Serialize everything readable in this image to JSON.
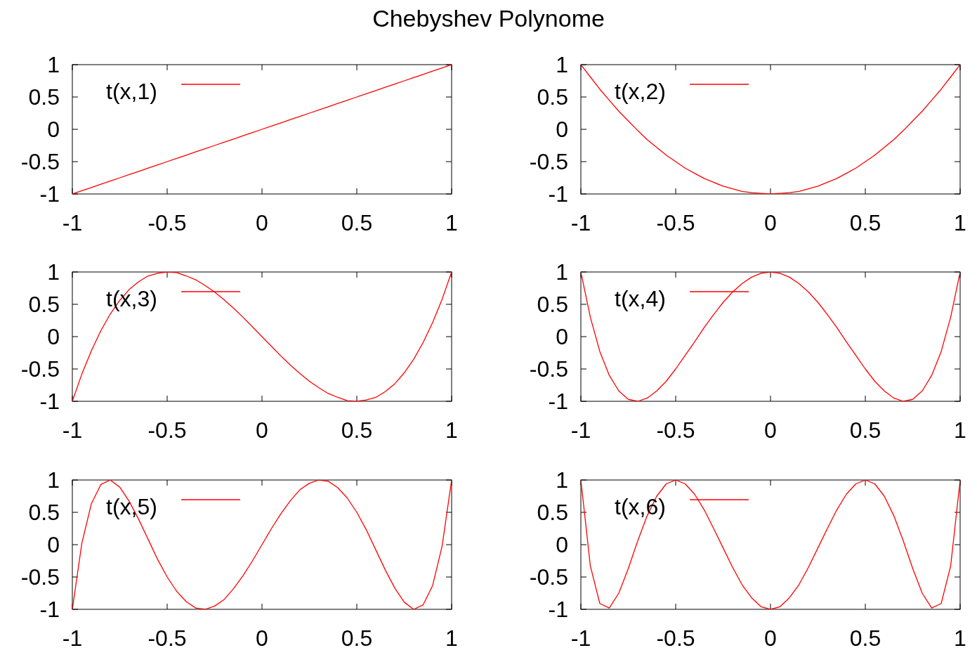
{
  "chart_data": [
    {
      "type": "line",
      "title": "Chebyshev Polynome",
      "legend": "top left",
      "xlim": [
        -1,
        1
      ],
      "ylim": [
        -1,
        1
      ],
      "xticks": [
        -1,
        -0.5,
        0,
        0.5,
        1
      ],
      "yticks": [
        -1,
        -0.5,
        0,
        0.5,
        1
      ],
      "x": [
        -1,
        -0.95,
        -0.9,
        -0.85,
        -0.8,
        -0.75,
        -0.7,
        -0.65,
        -0.6,
        -0.55,
        -0.5,
        -0.45,
        -0.4,
        -0.35,
        -0.3,
        -0.25,
        -0.2,
        -0.15,
        -0.1,
        -0.05,
        0,
        0.05,
        0.1,
        0.15,
        0.2,
        0.25,
        0.3,
        0.35,
        0.4,
        0.45,
        0.5,
        0.55,
        0.6,
        0.65,
        0.7,
        0.75,
        0.8,
        0.85,
        0.9,
        0.95,
        1
      ],
      "series": [
        {
          "name": "t(x,1)",
          "color": "#ff0000",
          "values": [
            -1,
            -0.95,
            -0.9,
            -0.85,
            -0.8,
            -0.75,
            -0.7,
            -0.65,
            -0.6,
            -0.55,
            -0.5,
            -0.45,
            -0.4,
            -0.35,
            -0.3,
            -0.25,
            -0.2,
            -0.15,
            -0.1,
            -0.05,
            0,
            0.05,
            0.1,
            0.15,
            0.2,
            0.25,
            0.3,
            0.35,
            0.4,
            0.45,
            0.5,
            0.55,
            0.6,
            0.65,
            0.7,
            0.75,
            0.8,
            0.85,
            0.9,
            0.95,
            1
          ]
        }
      ]
    },
    {
      "type": "line",
      "legend": "top left",
      "xlim": [
        -1,
        1
      ],
      "ylim": [
        -1,
        1
      ],
      "xticks": [
        -1,
        -0.5,
        0,
        0.5,
        1
      ],
      "yticks": [
        -1,
        -0.5,
        0,
        0.5,
        1
      ],
      "x": [
        -1,
        -0.95,
        -0.9,
        -0.85,
        -0.8,
        -0.75,
        -0.7,
        -0.65,
        -0.6,
        -0.55,
        -0.5,
        -0.45,
        -0.4,
        -0.35,
        -0.3,
        -0.25,
        -0.2,
        -0.15,
        -0.1,
        -0.05,
        0,
        0.05,
        0.1,
        0.15,
        0.2,
        0.25,
        0.3,
        0.35,
        0.4,
        0.45,
        0.5,
        0.55,
        0.6,
        0.65,
        0.7,
        0.75,
        0.8,
        0.85,
        0.9,
        0.95,
        1
      ],
      "series": [
        {
          "name": "t(x,2)",
          "color": "#ff0000",
          "values": [
            1,
            0.81,
            0.62,
            0.45,
            0.28,
            0.13,
            -0.02,
            -0.16,
            -0.28,
            -0.4,
            -0.5,
            -0.6,
            -0.68,
            -0.76,
            -0.82,
            -0.88,
            -0.92,
            -0.96,
            -0.98,
            -0.99,
            -1,
            -0.99,
            -0.98,
            -0.96,
            -0.92,
            -0.88,
            -0.82,
            -0.76,
            -0.68,
            -0.6,
            -0.5,
            -0.4,
            -0.28,
            -0.16,
            -0.02,
            0.13,
            0.28,
            0.45,
            0.62,
            0.81,
            1
          ]
        }
      ]
    },
    {
      "type": "line",
      "legend": "top left",
      "xlim": [
        -1,
        1
      ],
      "ylim": [
        -1,
        1
      ],
      "xticks": [
        -1,
        -0.5,
        0,
        0.5,
        1
      ],
      "yticks": [
        -1,
        -0.5,
        0,
        0.5,
        1
      ],
      "x": [
        -1,
        -0.95,
        -0.9,
        -0.85,
        -0.8,
        -0.75,
        -0.7,
        -0.65,
        -0.6,
        -0.55,
        -0.5,
        -0.45,
        -0.4,
        -0.35,
        -0.3,
        -0.25,
        -0.2,
        -0.15,
        -0.1,
        -0.05,
        0,
        0.05,
        0.1,
        0.15,
        0.2,
        0.25,
        0.3,
        0.35,
        0.4,
        0.45,
        0.5,
        0.55,
        0.6,
        0.65,
        0.7,
        0.75,
        0.8,
        0.85,
        0.9,
        0.95,
        1
      ],
      "series": [
        {
          "name": "t(x,3)",
          "color": "#ff0000",
          "values": [
            -1,
            -0.58,
            -0.22,
            0.09,
            0.35,
            0.56,
            0.73,
            0.85,
            0.94,
            0.98,
            1,
            0.99,
            0.94,
            0.88,
            0.79,
            0.69,
            0.57,
            0.44,
            0.3,
            0.15,
            0,
            -0.15,
            -0.3,
            -0.44,
            -0.57,
            -0.69,
            -0.79,
            -0.88,
            -0.94,
            -0.99,
            -1,
            -0.98,
            -0.94,
            -0.85,
            -0.73,
            -0.56,
            -0.35,
            -0.09,
            0.22,
            0.58,
            1
          ]
        }
      ]
    },
    {
      "type": "line",
      "legend": "top left",
      "xlim": [
        -1,
        1
      ],
      "ylim": [
        -1,
        1
      ],
      "xticks": [
        -1,
        -0.5,
        0,
        0.5,
        1
      ],
      "yticks": [
        -1,
        -0.5,
        0,
        0.5,
        1
      ],
      "x": [
        -1,
        -0.95,
        -0.9,
        -0.85,
        -0.8,
        -0.75,
        -0.7,
        -0.65,
        -0.6,
        -0.55,
        -0.5,
        -0.45,
        -0.4,
        -0.35,
        -0.3,
        -0.25,
        -0.2,
        -0.15,
        -0.1,
        -0.05,
        0,
        0.05,
        0.1,
        0.15,
        0.2,
        0.25,
        0.3,
        0.35,
        0.4,
        0.45,
        0.5,
        0.55,
        0.6,
        0.65,
        0.7,
        0.75,
        0.8,
        0.85,
        0.9,
        0.95,
        1
      ],
      "series": [
        {
          "name": "t(x,4)",
          "color": "#ff0000",
          "values": [
            1,
            0.3,
            -0.23,
            -0.6,
            -0.84,
            -0.97,
            -1,
            -0.95,
            -0.84,
            -0.69,
            -0.5,
            -0.29,
            -0.08,
            0.14,
            0.34,
            0.53,
            0.69,
            0.82,
            0.92,
            0.98,
            1,
            0.98,
            0.92,
            0.82,
            0.69,
            0.53,
            0.34,
            0.14,
            -0.08,
            -0.29,
            -0.5,
            -0.69,
            -0.84,
            -0.95,
            -1,
            -0.97,
            -0.84,
            -0.6,
            -0.23,
            0.3,
            1
          ]
        }
      ]
    },
    {
      "type": "line",
      "legend": "top left",
      "xlim": [
        -1,
        1
      ],
      "ylim": [
        -1,
        1
      ],
      "xticks": [
        -1,
        -0.5,
        0,
        0.5,
        1
      ],
      "yticks": [
        -1,
        -0.5,
        0,
        0.5,
        1
      ],
      "x": [
        -1,
        -0.95,
        -0.9,
        -0.85,
        -0.8,
        -0.75,
        -0.7,
        -0.65,
        -0.6,
        -0.55,
        -0.5,
        -0.45,
        -0.4,
        -0.35,
        -0.3,
        -0.25,
        -0.2,
        -0.15,
        -0.1,
        -0.05,
        0,
        0.05,
        0.1,
        0.15,
        0.2,
        0.25,
        0.3,
        0.35,
        0.4,
        0.45,
        0.5,
        0.55,
        0.6,
        0.65,
        0.7,
        0.75,
        0.8,
        0.85,
        0.9,
        0.95,
        1
      ],
      "series": [
        {
          "name": "t(x,5)",
          "color": "#ff0000",
          "values": [
            -1,
            0.02,
            0.63,
            0.93,
            1,
            0.89,
            0.67,
            0.39,
            0.08,
            -0.23,
            -0.5,
            -0.72,
            -0.88,
            -0.98,
            -1,
            -0.95,
            -0.85,
            -0.68,
            -0.48,
            -0.25,
            0,
            0.25,
            0.48,
            0.68,
            0.85,
            0.95,
            1,
            0.98,
            0.88,
            0.72,
            0.5,
            0.23,
            -0.08,
            -0.39,
            -0.67,
            -0.89,
            -1,
            -0.93,
            -0.63,
            -0.02,
            1
          ]
        }
      ]
    },
    {
      "type": "line",
      "legend": "top left",
      "xlim": [
        -1,
        1
      ],
      "ylim": [
        -1,
        1
      ],
      "xticks": [
        -1,
        -0.5,
        0,
        0.5,
        1
      ],
      "yticks": [
        -1,
        -0.5,
        0,
        0.5,
        1
      ],
      "x": [
        -1,
        -0.95,
        -0.9,
        -0.85,
        -0.8,
        -0.75,
        -0.7,
        -0.65,
        -0.6,
        -0.55,
        -0.5,
        -0.45,
        -0.4,
        -0.35,
        -0.3,
        -0.25,
        -0.2,
        -0.15,
        -0.1,
        -0.05,
        0,
        0.05,
        0.1,
        0.15,
        0.2,
        0.25,
        0.3,
        0.35,
        0.4,
        0.45,
        0.5,
        0.55,
        0.6,
        0.65,
        0.7,
        0.75,
        0.8,
        0.85,
        0.9,
        0.95,
        1
      ],
      "series": [
        {
          "name": "t(x,6)",
          "color": "#ff0000",
          "values": [
            1,
            -0.33,
            -0.91,
            -0.98,
            -0.75,
            -0.37,
            0.06,
            0.45,
            0.75,
            0.94,
            1,
            0.94,
            0.78,
            0.54,
            0.25,
            -0.05,
            -0.35,
            -0.62,
            -0.82,
            -0.96,
            -1,
            -0.96,
            -0.82,
            -0.62,
            -0.35,
            -0.05,
            0.25,
            0.54,
            0.78,
            0.94,
            1,
            0.94,
            0.75,
            0.45,
            0.06,
            -0.37,
            -0.75,
            -0.98,
            -0.91,
            -0.33,
            1
          ]
        }
      ]
    }
  ]
}
